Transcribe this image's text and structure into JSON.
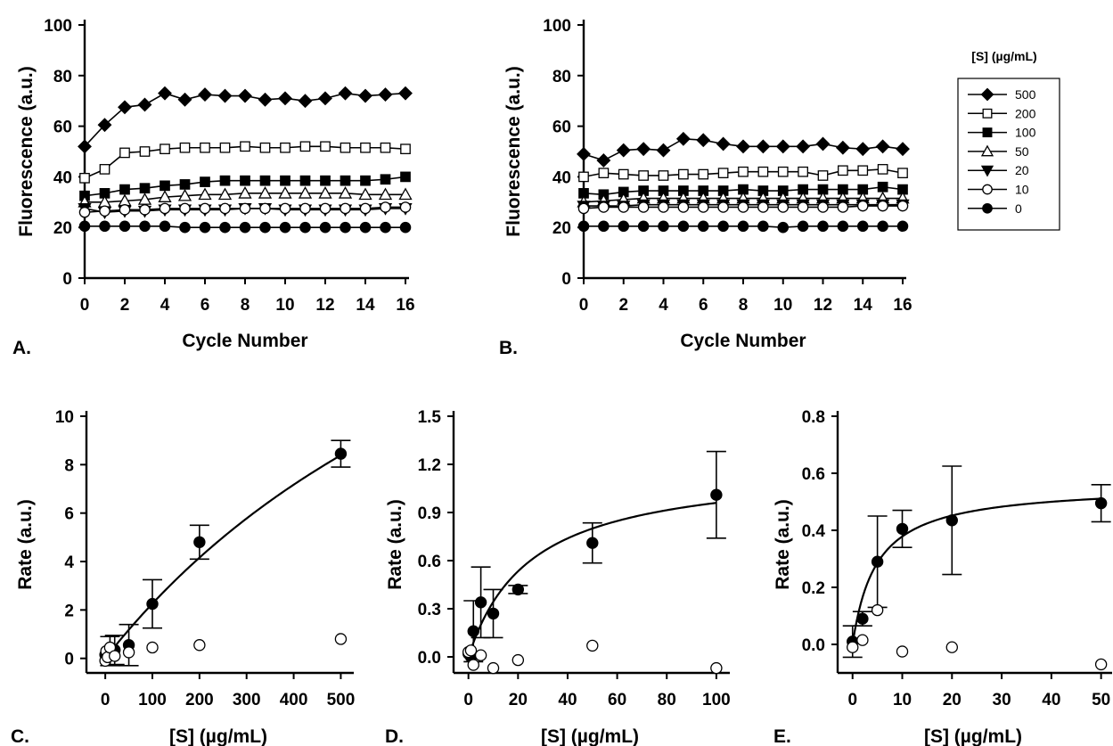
{
  "chart_data": [
    {
      "id": "A",
      "type": "line",
      "panel_label": "A.",
      "xlabel": "Cycle Number",
      "ylabel": "Fluorescence (a.u.)",
      "xlim": [
        0,
        16
      ],
      "ylim": [
        0,
        100
      ],
      "xticks": [
        0,
        2,
        4,
        6,
        8,
        10,
        12,
        14,
        16
      ],
      "yticks": [
        0,
        20,
        40,
        60,
        80,
        100
      ],
      "x": [
        0,
        1,
        2,
        3,
        4,
        5,
        6,
        7,
        8,
        9,
        10,
        11,
        12,
        13,
        14,
        15,
        16
      ],
      "series": [
        {
          "name": "500",
          "marker": "diamond-filled",
          "values": [
            52,
            60.5,
            67.5,
            68.5,
            73,
            70.5,
            72.5,
            72,
            72,
            70.5,
            71,
            70,
            71,
            73,
            72,
            72.5,
            73
          ]
        },
        {
          "name": "200",
          "marker": "square-open",
          "values": [
            39.5,
            43,
            49.5,
            50,
            51,
            51.5,
            51.5,
            51.5,
            52,
            51.5,
            51.5,
            52,
            52,
            51.5,
            51.5,
            51.5,
            51
          ]
        },
        {
          "name": "100",
          "marker": "square-filled",
          "values": [
            32.5,
            33.5,
            35,
            35.5,
            36.5,
            37,
            38,
            38.5,
            38.5,
            38.5,
            38.5,
            38.5,
            38.5,
            38.5,
            38.5,
            39,
            40
          ]
        },
        {
          "name": "50",
          "marker": "triangle-up-open",
          "values": [
            30,
            30,
            30.5,
            31,
            32,
            32.5,
            33,
            33,
            33.5,
            33.5,
            33.5,
            33.5,
            33.5,
            33.5,
            33,
            33,
            33
          ]
        },
        {
          "name": "20",
          "marker": "triangle-down-filled",
          "values": [
            27.5,
            26,
            26.5,
            26.5,
            27,
            27,
            27,
            27,
            27.5,
            27.5,
            27,
            27,
            27,
            27,
            27,
            27.5,
            27.5
          ]
        },
        {
          "name": "10",
          "marker": "circle-open",
          "values": [
            26,
            26.5,
            27,
            27,
            27.5,
            27.5,
            27.5,
            27.5,
            27.5,
            27.5,
            27.5,
            27.5,
            27.5,
            27.5,
            27.5,
            28,
            28
          ]
        },
        {
          "name": "0",
          "marker": "circle-filled",
          "values": [
            20.5,
            20.5,
            20.5,
            20.5,
            20.5,
            20,
            20,
            20,
            20,
            20,
            20,
            20,
            20,
            20,
            20,
            20,
            20
          ]
        }
      ]
    },
    {
      "id": "B",
      "type": "line",
      "panel_label": "B.",
      "xlabel": "Cycle Number",
      "ylabel": "Fluorescence (a.u.)",
      "xlim": [
        0,
        16
      ],
      "ylim": [
        0,
        100
      ],
      "xticks": [
        0,
        2,
        4,
        6,
        8,
        10,
        12,
        14,
        16
      ],
      "yticks": [
        0,
        20,
        40,
        60,
        80,
        100
      ],
      "x": [
        0,
        1,
        2,
        3,
        4,
        5,
        6,
        7,
        8,
        9,
        10,
        11,
        12,
        13,
        14,
        15,
        16
      ],
      "series": [
        {
          "name": "500",
          "marker": "diamond-filled",
          "values": [
            49,
            46.5,
            50.5,
            51,
            50.5,
            55,
            54.5,
            53,
            52,
            52,
            52,
            52,
            53,
            51.5,
            51,
            52,
            51
          ]
        },
        {
          "name": "200",
          "marker": "square-open",
          "values": [
            40,
            41.5,
            41,
            40.5,
            40.5,
            41,
            41,
            41.5,
            42,
            42,
            42,
            42,
            40.5,
            42.5,
            42.5,
            43,
            41.5
          ]
        },
        {
          "name": "100",
          "marker": "square-filled",
          "values": [
            33.5,
            33,
            34,
            34.5,
            34.5,
            34.5,
            34.5,
            34.5,
            35,
            34.5,
            34.5,
            35,
            35,
            35,
            35,
            36,
            35
          ]
        },
        {
          "name": "50",
          "marker": "triangle-up-open",
          "values": [
            30,
            30.5,
            31,
            31.5,
            31.5,
            31.5,
            31.5,
            31.5,
            31.5,
            31.5,
            31.5,
            31.5,
            31.5,
            31.5,
            31.5,
            31.5,
            31.5
          ]
        },
        {
          "name": "20",
          "marker": "triangle-down-filled",
          "values": [
            28.5,
            28.5,
            28.5,
            29,
            29,
            29,
            29,
            29,
            29,
            29,
            29,
            29,
            29,
            29,
            29,
            29,
            29
          ]
        },
        {
          "name": "10",
          "marker": "circle-open",
          "values": [
            27.5,
            28,
            28,
            28,
            28,
            28,
            28,
            28,
            28,
            28,
            28,
            28,
            28,
            28,
            28.5,
            28.5,
            28.5
          ]
        },
        {
          "name": "0",
          "marker": "circle-filled",
          "values": [
            20.5,
            20.5,
            20.5,
            20.5,
            20.5,
            20.5,
            20.5,
            20.5,
            20.5,
            20.5,
            20,
            20.5,
            20.5,
            20.5,
            20.5,
            20.5,
            20.5
          ]
        }
      ]
    },
    {
      "id": "C",
      "type": "scatter",
      "panel_label": "C.",
      "xlabel": "[S] (µg/mL)",
      "ylabel": "Rate (a.u.)",
      "xlim": [
        -40,
        520
      ],
      "ylim": [
        -0.6,
        10
      ],
      "xticks": [
        0,
        100,
        200,
        300,
        400,
        500
      ],
      "yticks": [
        0,
        2,
        4,
        6,
        8,
        10
      ],
      "ytick_labels": [
        "0",
        "2",
        "4",
        "6",
        "8",
        "10"
      ],
      "filled": {
        "x": [
          0,
          2,
          5,
          10,
          20,
          50,
          100,
          200,
          500
        ],
        "y": [
          0.15,
          0.2,
          0.25,
          0.3,
          0.35,
          0.55,
          2.25,
          4.8,
          8.45
        ],
        "err": [
          0,
          0,
          0,
          0.6,
          0.6,
          0.85,
          1.0,
          0.7,
          0.55
        ]
      },
      "open": {
        "x": [
          0,
          2,
          5,
          10,
          20,
          50,
          100,
          200,
          500
        ],
        "y": [
          -0.1,
          0.3,
          0.05,
          0.45,
          0.1,
          0.25,
          0.45,
          0.55,
          0.8
        ]
      },
      "fit": {
        "vmax": 26,
        "km": 1050
      }
    },
    {
      "id": "D",
      "type": "scatter",
      "panel_label": "D.",
      "xlabel": "[S] (µg/mL)",
      "ylabel": "Rate (a.u.)",
      "xlim": [
        -6,
        104
      ],
      "ylim": [
        -0.1,
        1.5
      ],
      "xticks": [
        0,
        20,
        40,
        60,
        80,
        100
      ],
      "yticks": [
        0,
        0.3,
        0.6,
        0.9,
        1.2,
        1.5
      ],
      "ytick_labels": [
        "0.0",
        "0.3",
        "0.6",
        "0.9",
        "1.2",
        "1.5"
      ],
      "filled": {
        "x": [
          0,
          1,
          2,
          5,
          10,
          20,
          50,
          100
        ],
        "y": [
          0.02,
          0,
          0.16,
          0.34,
          0.27,
          0.42,
          0.71,
          1.01
        ],
        "err": [
          0,
          0,
          0.19,
          0.22,
          0.15,
          0.025,
          0.125,
          0.27
        ]
      },
      "open": {
        "x": [
          0,
          1,
          2,
          5,
          10,
          20,
          50,
          100
        ],
        "y": [
          0.03,
          0.04,
          -0.05,
          0.01,
          -0.07,
          -0.02,
          0.07,
          -0.07
        ]
      },
      "fit": {
        "vmax": 1.2,
        "km": 25
      }
    },
    {
      "id": "E",
      "type": "scatter",
      "panel_label": "E.",
      "xlabel": "[S] (µg/mL)",
      "ylabel": "Rate (a.u.)",
      "xlim": [
        -3,
        51.5
      ],
      "ylim": [
        -0.1,
        0.8
      ],
      "xticks": [
        0,
        10,
        20,
        30,
        40,
        50
      ],
      "yticks": [
        0,
        0.2,
        0.4,
        0.6,
        0.8
      ],
      "ytick_labels": [
        "0.0",
        "0.2",
        "0.4",
        "0.6",
        "0.8"
      ],
      "filled": {
        "x": [
          0,
          2,
          5,
          10,
          20,
          50
        ],
        "y": [
          0.01,
          0.09,
          0.29,
          0.405,
          0.435,
          0.495
        ],
        "err": [
          0.055,
          0.025,
          0.16,
          0.065,
          0.19,
          0.065
        ]
      },
      "open": {
        "x": [
          0,
          2,
          5,
          10,
          20,
          50
        ],
        "y": [
          -0.01,
          0.015,
          0.12,
          -0.025,
          -0.01,
          -0.07
        ]
      },
      "fit": {
        "vmax": 0.56,
        "km": 4.8
      }
    }
  ],
  "legend": {
    "title": "[S] (µg/mL)",
    "entries": [
      "500",
      "200",
      "100",
      "50",
      "20",
      "10",
      "0"
    ]
  }
}
